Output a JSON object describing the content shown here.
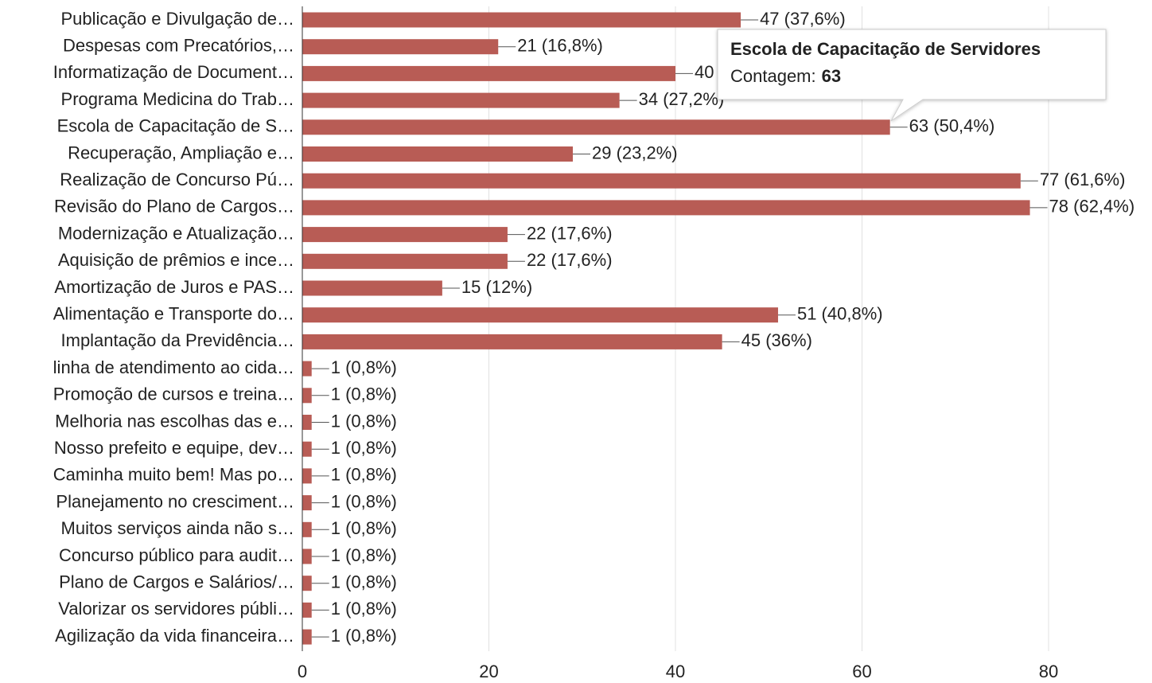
{
  "chart_data": {
    "type": "bar",
    "orientation": "horizontal",
    "categories": [
      "Publicação e Divulgação de…",
      "Despesas com Precatórios,…",
      "Informatização de Document…",
      "Programa Medicina do Trab…",
      "Escola de Capacitação de S…",
      "Recuperação, Ampliação e…",
      "Realização de Concurso Pú…",
      "Revisão do Plano de Cargos…",
      "Modernização e Atualização…",
      "Aquisição de prêmios e ince…",
      "Amortização de Juros e PAS…",
      "Alimentação e Transporte do…",
      "Implantação da Previdência…",
      "linha de atendimento ao cida…",
      "Promoção de cursos e treina…",
      "Melhoria nas escolhas das e…",
      "Nosso prefeito e equipe, dev…",
      "Caminha muito bem! Mas po…",
      "Planejamento no cresciment…",
      "Muitos serviços ainda não s…",
      "Concurso público para audit…",
      "Plano de Cargos e Salários/…",
      "Valorizar os servidores públi…",
      "Agilização da vida financeira…"
    ],
    "values": [
      47,
      21,
      40,
      34,
      63,
      29,
      77,
      78,
      22,
      22,
      15,
      51,
      45,
      1,
      1,
      1,
      1,
      1,
      1,
      1,
      1,
      1,
      1,
      1
    ],
    "value_labels": [
      "47 (37,6%)",
      "21 (16,8%)",
      "40 (32%)",
      "34 (27,2%)",
      "63 (50,4%)",
      "29 (23,2%)",
      "77 (61,6%)",
      "78 (62,4%)",
      "22 (17,6%)",
      "22 (17,6%)",
      "15 (12%)",
      "51 (40,8%)",
      "45 (36%)",
      "1 (0,8%)",
      "1 (0,8%)",
      "1 (0,8%)",
      "1 (0,8%)",
      "1 (0,8%)",
      "1 (0,8%)",
      "1 (0,8%)",
      "1 (0,8%)",
      "1 (0,8%)",
      "1 (0,8%)",
      "1 (0,8%)"
    ],
    "color": "#b85c55",
    "xlim": [
      0,
      80
    ],
    "xticks": [
      0,
      20,
      40,
      60,
      80
    ],
    "grid": true,
    "tooltip": {
      "title": "Escola de Capacitação de Servidores",
      "label": "Contagem:",
      "value": 63
    }
  }
}
